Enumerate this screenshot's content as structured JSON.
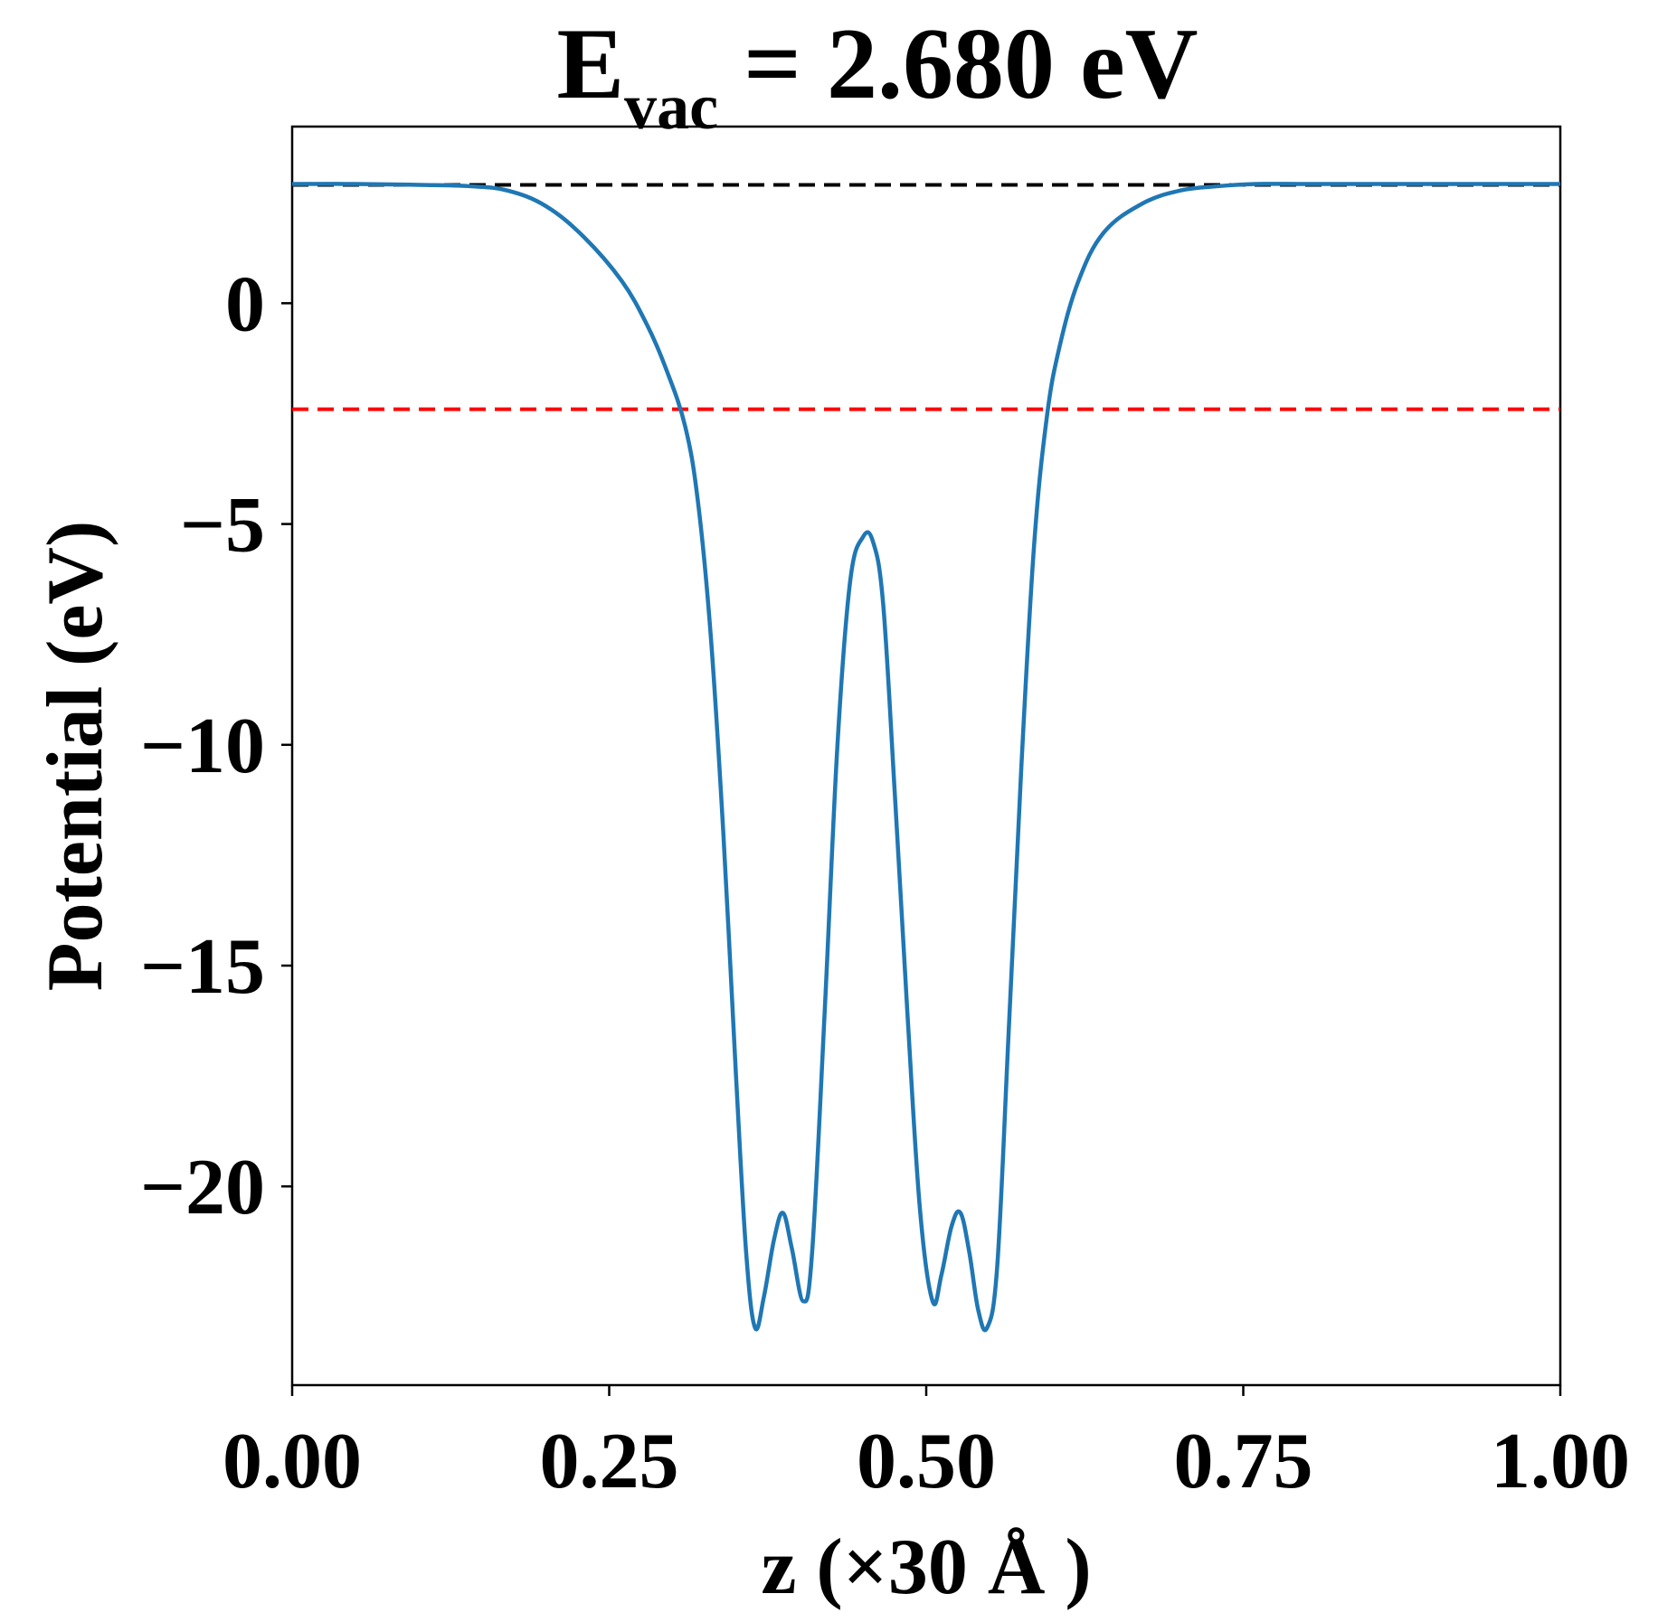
{
  "chart_data": {
    "type": "line",
    "title": {
      "main": "E",
      "subscript": "vac",
      "rest": " = 2.680 eV"
    },
    "xlabel": "z (×30 Å )",
    "ylabel": "Potential (eV)",
    "xlim": [
      0.0,
      1.0
    ],
    "ylim": [
      -24.5,
      4.0
    ],
    "xticks": [
      0.0,
      0.25,
      0.5,
      0.75,
      1.0
    ],
    "xtick_labels": [
      "0.00",
      "0.25",
      "0.50",
      "0.75",
      "1.00"
    ],
    "yticks": [
      0,
      -5,
      -10,
      -15,
      -20
    ],
    "ytick_labels": [
      "0",
      "−5",
      "−10",
      "−15",
      "−20"
    ],
    "grid": false,
    "series": [
      {
        "color": "#1f77b4",
        "x": [
          0.0,
          0.05,
          0.1,
          0.14,
          0.17,
          0.2,
          0.23,
          0.26,
          0.28,
          0.295,
          0.31,
          0.32,
          0.33,
          0.34,
          0.35,
          0.358,
          0.365,
          0.372,
          0.38,
          0.387,
          0.394,
          0.403,
          0.41,
          0.42,
          0.43,
          0.44,
          0.45,
          0.458,
          0.466,
          0.475,
          0.485,
          0.495,
          0.505,
          0.512,
          0.52,
          0.527,
          0.534,
          0.541,
          0.548,
          0.556,
          0.565,
          0.575,
          0.585,
          0.595,
          0.605,
          0.62,
          0.64,
          0.67,
          0.7,
          0.73,
          0.76,
          0.8,
          0.85,
          0.9,
          0.95,
          1.0
        ],
        "y": [
          2.7,
          2.7,
          2.68,
          2.65,
          2.55,
          2.2,
          1.5,
          0.5,
          -0.5,
          -1.5,
          -2.8,
          -4.5,
          -7.5,
          -12.0,
          -17.5,
          -21.5,
          -23.2,
          -22.5,
          -21.2,
          -20.6,
          -21.4,
          -22.6,
          -21.5,
          -16.0,
          -10.0,
          -6.3,
          -5.3,
          -5.4,
          -6.8,
          -11.0,
          -16.0,
          -20.5,
          -22.6,
          -22.0,
          -20.9,
          -20.6,
          -21.5,
          -22.8,
          -23.2,
          -21.8,
          -16.5,
          -10.5,
          -5.5,
          -2.6,
          -1.0,
          0.5,
          1.6,
          2.25,
          2.55,
          2.65,
          2.7,
          2.7,
          2.7,
          2.7,
          2.7,
          2.7
        ]
      }
    ],
    "hlines": [
      {
        "y": 2.68,
        "color": "#000000",
        "style": "dashed"
      },
      {
        "y": -2.4,
        "color": "#ff0000",
        "style": "dashed"
      }
    ]
  }
}
